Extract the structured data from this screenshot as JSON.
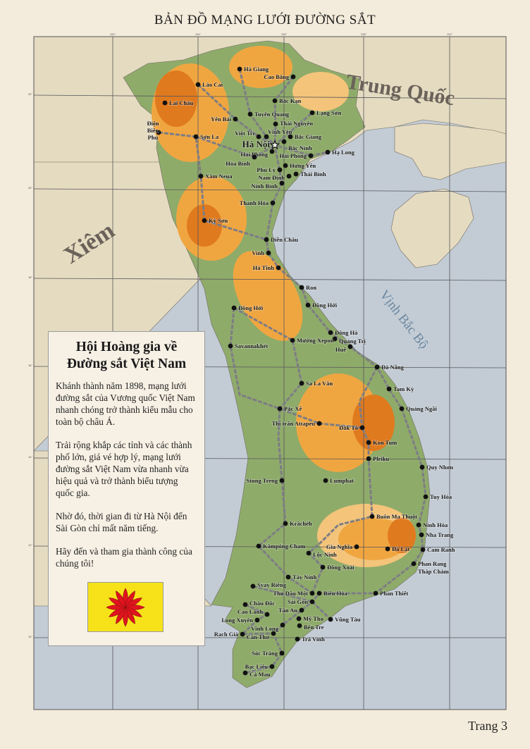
{
  "header": {
    "title": "BẢN ĐỒ MẠNG LƯỚI ĐƯỜNG SẮT"
  },
  "footer": {
    "page": "Trang 3"
  },
  "map": {
    "labels": {
      "china": "Trung Quốc",
      "siam": "Xiêm",
      "gulf": "Vịnh Bắc Bộ"
    },
    "longitude_ticks": [
      "102°",
      "104°",
      "106°",
      "108°",
      "110°"
    ],
    "latitude_ticks": [
      "22°",
      "20°",
      "18°",
      "16°",
      "14°",
      "12°",
      "10°"
    ],
    "capital": "Hà Nội",
    "cities": [
      "Hà Giang",
      "Cao Bằng",
      "Lào Cai",
      "Bắc Kạn",
      "Lai Châu",
      "Lạng Sơn",
      "Tuyên Quang",
      "Yên Bái",
      "Thái Nguyên",
      "Điện Biên Phủ",
      "Sơn La",
      "Việt Trì",
      "Vĩnh Yên",
      "Bắc Giang",
      "Bắc Ninh",
      "Hải Phòng",
      "Hạ Long",
      "Hòa Bình",
      "Hải Phòng",
      "Hưng Yên",
      "Phủ Lý",
      "Thái Bình",
      "Nam Định",
      "Ninh Bình",
      "Xâm Neua",
      "Thanh Hóa",
      "Kỳ Sơn",
      "Diễn Châu",
      "Vinh",
      "Hà Tĩnh",
      "Ron",
      "Đồng Hới",
      "Đồng Hới",
      "Savannakhét",
      "Đông Hà",
      "Quảng Trị",
      "Mường Xepon",
      "Huế",
      "Đà Nẵng",
      "Sa La Văn",
      "Tam Kỳ",
      "Quảng Ngãi",
      "Pắc Xế",
      "Thị trấn Attapeu",
      "Đắk Tô",
      "Kon Tum",
      "Pleiku",
      "Quy Nhơn",
      "Lumphat",
      "Stung Treng",
      "Tuy Hòa",
      "Buôn Ma Thuột",
      "Krâchéh",
      "Ninh Hòa",
      "Nha Trang",
      "Kâmpóng Cham",
      "Gia Nghĩa",
      "Đà Lạt",
      "Cam Ranh",
      "Lộc Ninh",
      "Đồng Xoài",
      "Phan Rang Tháp Chàm",
      "Tây Ninh",
      "Svay Riêng",
      "Thủ Dầu Một",
      "Biên Hòa",
      "Phan Thiết",
      "Châu Đốc",
      "Sài Gòn",
      "Tân An",
      "Cao Lãnh",
      "Long Xuyên",
      "Mỹ Tho",
      "Vũng Tàu",
      "Bến Tre",
      "Vĩnh Long",
      "Rạch Giá",
      "Cần Thơ",
      "Trà Vinh",
      "Sóc Trăng",
      "Bạc Liêu",
      "Cà Mau"
    ],
    "colors": {
      "sea": "#c3ccd5",
      "land": "#e5dbc1",
      "lowland": "#8fab6a",
      "highland": "#f0a640",
      "mountain": "#e07a1e",
      "railway": "#7d7d85"
    }
  },
  "panel": {
    "title_line1": "Hội Hoàng gia về",
    "title_line2": "Đường sắt Việt Nam",
    "paragraphs": [
      "Khánh thành năm 1898, mạng lưới đường sắt của Vương quốc Việt Nam nhanh chóng trở thành kiểu mẫu cho toàn bộ châu Á.",
      "Trải rộng khắp các tỉnh và các thành phố lớn, giá vé hợp lý, mạng lưới đường sắt Việt Nam vừa nhanh vừa hiệu quả và trở thành biểu tượng quốc gia.",
      "Nhờ đó, thời gian đi từ Hà Nội đến Sài Gòn chỉ mất năm tiếng.",
      "Hãy đến và tham gia thành công của chúng tôi!"
    ],
    "flag": {
      "field": "#f7e21a",
      "emblem": "#e0141e"
    }
  }
}
